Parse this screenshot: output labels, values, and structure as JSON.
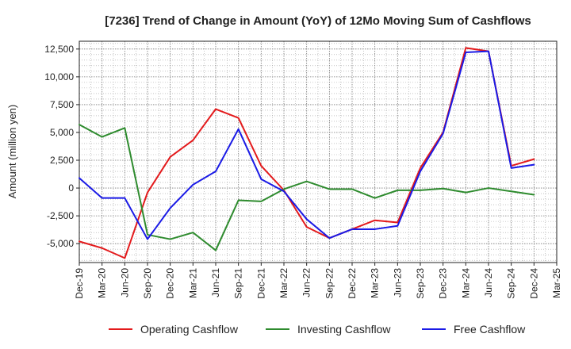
{
  "chart_data": {
    "type": "line",
    "title": "[7236]  Trend of Change in Amount (YoY) of 12Mo Moving Sum of Cashflows",
    "xlabel": "",
    "ylabel": "Amount (million yen)",
    "ylim": [
      -6700,
      13200
    ],
    "yticks": [
      12500,
      10000,
      7500,
      5000,
      2500,
      0,
      -2500,
      -5000
    ],
    "ytick_labels": [
      "12,500",
      "10,000",
      "7,500",
      "5,000",
      "2,500",
      "0",
      "-2,500",
      "-5,000"
    ],
    "grid": true,
    "legend": "bottom",
    "categories": [
      "Dec-19",
      "Mar-20",
      "Jun-20",
      "Sep-20",
      "Dec-20",
      "Mar-21",
      "Jun-21",
      "Sep-21",
      "Dec-21",
      "Mar-22",
      "Jun-22",
      "Sep-22",
      "Dec-22",
      "Mar-23",
      "Jun-23",
      "Sep-23",
      "Dec-23",
      "Mar-24",
      "Jun-24",
      "Sep-24",
      "Dec-24",
      "Mar-25"
    ],
    "series": [
      {
        "name": "Operating Cashflow",
        "color": "#e31a1c",
        "values": [
          -4800,
          -5400,
          -6300,
          -400,
          2800,
          4300,
          7100,
          6300,
          2000,
          -200,
          -3500,
          -4500,
          -3700,
          -2900,
          -3100,
          1800,
          5000,
          12600,
          12300,
          2000,
          2600,
          null
        ]
      },
      {
        "name": "Investing Cashflow",
        "color": "#2e8b2e",
        "values": [
          5700,
          4600,
          5400,
          -4200,
          -4600,
          -4000,
          -5600,
          -1100,
          -1200,
          -100,
          600,
          -100,
          -100,
          -900,
          -200,
          -200,
          -50,
          -400,
          0,
          -300,
          -600,
          null
        ]
      },
      {
        "name": "Free Cashflow",
        "color": "#1a1ae6",
        "values": [
          900,
          -900,
          -900,
          -4600,
          -1800,
          300,
          1500,
          5300,
          800,
          -300,
          -2800,
          -4500,
          -3700,
          -3700,
          -3400,
          1500,
          4900,
          12200,
          12300,
          1800,
          2100,
          null
        ]
      }
    ]
  }
}
